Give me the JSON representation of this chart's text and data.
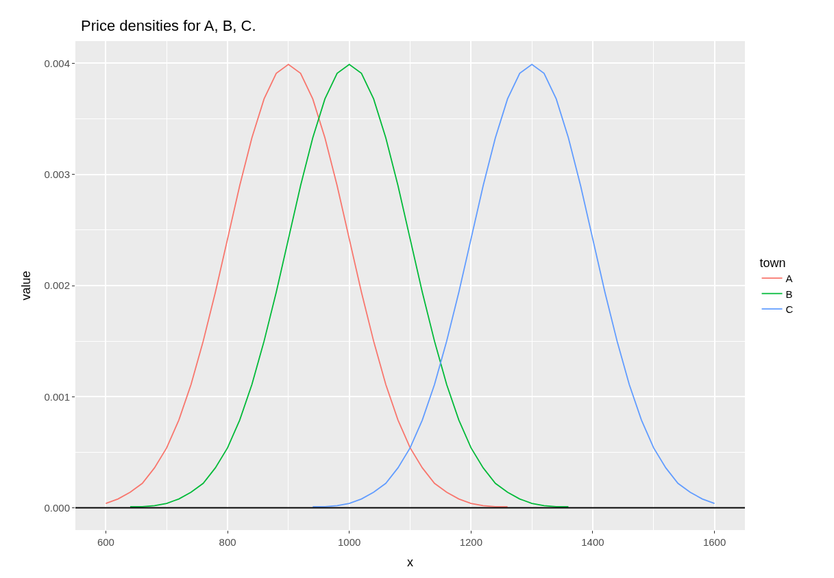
{
  "chart_data": {
    "type": "line",
    "title": "Price densities for A, B, C.",
    "xlabel": "x",
    "ylabel": "value",
    "legend_title": "town",
    "legend": "right",
    "grid": true,
    "marker": "none",
    "line_style": "solid",
    "x": [
      600,
      620,
      640,
      660,
      680,
      700,
      720,
      740,
      760,
      780,
      800,
      820,
      840,
      860,
      880,
      900,
      920,
      940,
      960,
      980,
      1000,
      1020,
      1040,
      1060,
      1080,
      1100,
      1120,
      1140,
      1160,
      1180,
      1200,
      1220,
      1240,
      1260,
      1280,
      1300,
      1320,
      1340,
      1360,
      1380,
      1400,
      1420,
      1440,
      1460,
      1480,
      1500,
      1520,
      1540,
      1560,
      1580,
      1600
    ],
    "xlim": [
      550,
      1650
    ],
    "xticks": [
      600,
      800,
      1000,
      1200,
      1400,
      1600
    ],
    "ylim": [
      -0.0002,
      0.0042
    ],
    "yticks": [
      {
        "value": 0,
        "label": "0.000"
      },
      {
        "value": 0.001,
        "label": "0.001"
      },
      {
        "value": 0.002,
        "label": "0.002"
      },
      {
        "value": 0.003,
        "label": "0.003"
      },
      {
        "value": 0.004,
        "label": "0.004"
      }
    ],
    "ref_lines": [
      {
        "axis": "y",
        "value": 0,
        "label": null,
        "color": "#000000"
      }
    ],
    "series": [
      {
        "name": "A",
        "color": "#F8766D",
        "values": [
          4e-05,
          8e-05,
          0.00014,
          0.00022,
          0.00036,
          0.00054,
          0.00079,
          0.00111,
          0.0015,
          0.00194,
          0.00242,
          0.0029,
          0.00333,
          0.00368,
          0.00391,
          0.00399,
          0.00391,
          0.00368,
          0.00333,
          0.0029,
          0.00242,
          0.00194,
          0.0015,
          0.00111,
          0.00079,
          0.00054,
          0.00036,
          0.00022,
          0.00014,
          8e-05,
          4e-05,
          2e-05,
          1e-05,
          1e-05,
          null,
          null,
          null,
          null,
          null,
          null,
          null,
          null,
          null,
          null,
          null,
          null,
          null,
          null,
          null,
          null,
          null
        ]
      },
      {
        "name": "B",
        "color": "#00BA38",
        "values": [
          null,
          null,
          1e-05,
          1e-05,
          2e-05,
          4e-05,
          8e-05,
          0.00014,
          0.00022,
          0.00036,
          0.00054,
          0.00079,
          0.00111,
          0.0015,
          0.00194,
          0.00242,
          0.0029,
          0.00333,
          0.00368,
          0.00391,
          0.00399,
          0.00391,
          0.00368,
          0.00333,
          0.0029,
          0.00242,
          0.00194,
          0.0015,
          0.00111,
          0.00079,
          0.00054,
          0.00036,
          0.00022,
          0.00014,
          8e-05,
          4e-05,
          2e-05,
          1e-05,
          1e-05,
          null,
          null,
          null,
          null,
          null,
          null,
          null,
          null,
          null,
          null,
          null,
          null
        ]
      },
      {
        "name": "C",
        "color": "#619CFF",
        "values": [
          null,
          null,
          null,
          null,
          null,
          null,
          null,
          null,
          null,
          null,
          null,
          null,
          null,
          null,
          null,
          null,
          null,
          1e-05,
          1e-05,
          2e-05,
          4e-05,
          8e-05,
          0.00014,
          0.00022,
          0.00036,
          0.00054,
          0.00079,
          0.00111,
          0.0015,
          0.00194,
          0.00242,
          0.0029,
          0.00333,
          0.00368,
          0.00391,
          0.00399,
          0.00391,
          0.00368,
          0.00333,
          0.0029,
          0.00242,
          0.00194,
          0.0015,
          0.00111,
          0.00079,
          0.00054,
          0.00036,
          0.00022,
          0.00014,
          8e-05,
          4e-05
        ]
      }
    ]
  }
}
